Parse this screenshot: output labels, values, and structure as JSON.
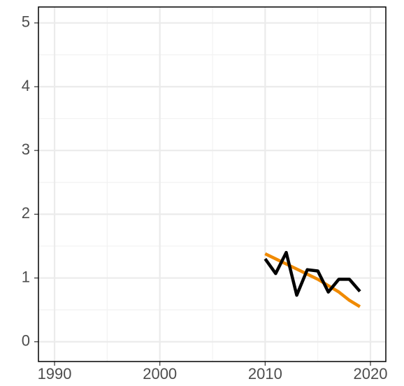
{
  "chart_data": {
    "type": "line",
    "x": [
      2010,
      2011,
      2012,
      2013,
      2014,
      2015,
      2016,
      2017,
      2018,
      2019
    ],
    "series": [
      {
        "color": "#f08a00",
        "values": [
          1.38,
          1.3,
          1.22,
          1.14,
          1.06,
          0.98,
          0.88,
          0.78,
          0.65,
          0.55
        ]
      },
      {
        "color": "#000000",
        "values": [
          1.3,
          1.07,
          1.4,
          0.73,
          1.13,
          1.11,
          0.78,
          0.98,
          0.98,
          0.79
        ]
      }
    ],
    "xlim": [
      1988.47,
      2021.46
    ],
    "xticks": [
      1990,
      2000,
      2010,
      2020
    ],
    "ylim": [
      -0.31,
      5.25
    ],
    "yticks": [
      0,
      1,
      2,
      3,
      4,
      5
    ],
    "xminor": [
      1995,
      2005,
      2015
    ],
    "yminor": [
      0.5,
      1.5,
      2.5,
      3.5,
      4.5
    ],
    "grid": true
  }
}
